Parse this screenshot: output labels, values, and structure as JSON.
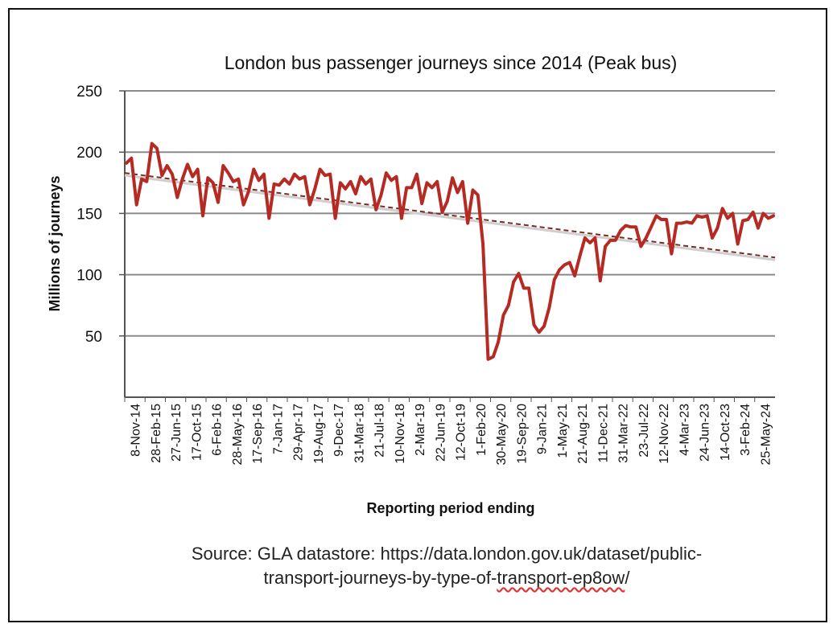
{
  "chart_data": {
    "type": "line",
    "title": "London bus passenger journeys since 2014 (Peak bus)",
    "xlabel": "Reporting period ending",
    "ylabel": "Millions of journeys",
    "ylim": [
      0,
      250
    ],
    "yticks": [
      50,
      100,
      150,
      200,
      250
    ],
    "grid": true,
    "tick_labels": [
      "8-Nov-14",
      "28-Feb-15",
      "27-Jun-15",
      "17-Oct-15",
      "6-Feb-16",
      "28-May-16",
      "17-Sep-16",
      "7-Jan-17",
      "29-Apr-17",
      "19-Aug-17",
      "9-Dec-17",
      "31-Mar-18",
      "21-Jul-18",
      "10-Nov-18",
      "2-Mar-19",
      "22-Jun-19",
      "12-Oct-19",
      "1-Feb-20",
      "30-May-20",
      "19-Sep-20",
      "9-Jan-21",
      "1-May-21",
      "21-Aug-21",
      "11-Dec-21",
      "31-Mar-22",
      "23-Jul-22",
      "12-Nov-22",
      "4-Mar-23",
      "24-Jun-23",
      "14-Oct-23",
      "3-Feb-24",
      "25-May-24"
    ],
    "series": [
      {
        "name": "Peak bus journeys",
        "color": "#b52a22",
        "values": [
          191,
          195,
          157,
          178,
          176,
          207,
          203,
          181,
          189,
          182,
          163,
          178,
          190,
          180,
          186,
          148,
          179,
          175,
          159,
          189,
          183,
          176,
          178,
          157,
          168,
          186,
          177,
          182,
          146,
          174,
          173,
          178,
          174,
          182,
          178,
          180,
          157,
          170,
          186,
          181,
          182,
          146,
          175,
          170,
          176,
          166,
          180,
          174,
          178,
          153,
          165,
          183,
          177,
          180,
          146,
          171,
          171,
          182,
          158,
          175,
          171,
          176,
          151,
          160,
          179,
          167,
          176,
          142,
          169,
          165,
          125,
          31,
          33,
          45,
          67,
          75,
          94,
          101,
          89,
          89,
          59,
          53,
          58,
          73,
          96,
          104,
          108,
          110,
          99,
          115,
          130,
          126,
          130,
          95,
          123,
          128,
          128,
          136,
          140,
          139,
          139,
          123,
          130,
          139,
          148,
          145,
          145,
          117,
          142,
          142,
          143,
          142,
          148,
          147,
          148,
          130,
          138,
          154,
          146,
          150,
          125,
          144,
          145,
          151,
          138,
          150,
          146,
          148
        ]
      },
      {
        "name": "Trend",
        "color": "#7a2a22",
        "style": "dashed",
        "values": [
          183,
          114
        ]
      }
    ]
  },
  "source": {
    "line1": "Source: GLA datastore: https://data.london.gov.uk/dataset/public-",
    "line2a": "transport-journeys-by-type-of-",
    "line2b": "transport-ep8ow",
    "line2c": "/"
  }
}
